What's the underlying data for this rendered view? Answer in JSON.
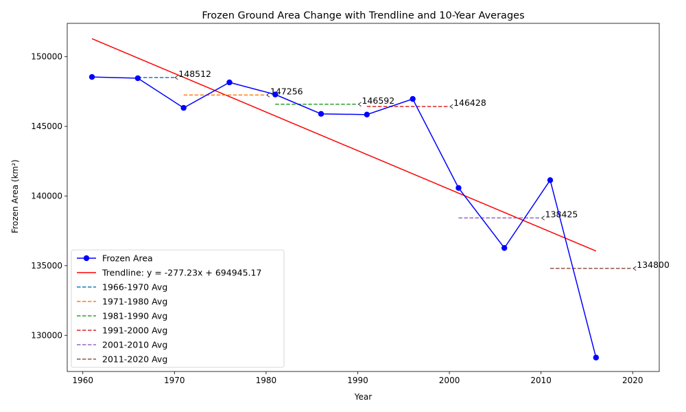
{
  "chart_data": {
    "type": "line",
    "title": "Frozen Ground Area Change with Trendline and 10-Year Averages",
    "xlabel": "Year",
    "ylabel": "Frozen Area (km²)",
    "xlim": [
      1958.3,
      2022.9
    ],
    "ylim": [
      127400,
      152400
    ],
    "xticks": [
      1960,
      1970,
      1980,
      1990,
      2000,
      2010,
      2020
    ],
    "yticks": [
      130000,
      135000,
      140000,
      145000,
      150000
    ],
    "grid": false,
    "legend_position": "lower-left",
    "series": [
      {
        "name": "Frozen Area",
        "color": "#0000ff",
        "marker": "circle",
        "x": [
          1961,
          1966,
          1971,
          1976,
          1981,
          1986,
          1991,
          1996,
          2001,
          2006,
          2011,
          2016
        ],
        "y": [
          148550,
          148460,
          146330,
          148160,
          147290,
          145900,
          145850,
          146970,
          140580,
          136270,
          141140,
          128400
        ]
      }
    ],
    "trendline": {
      "name": "Trendline: y = -277.23x + 694945.17",
      "color": "#ff0000",
      "slope": -277.23,
      "intercept": 694945.17,
      "x_range": [
        1961,
        2016
      ]
    },
    "averages": [
      {
        "name": "1966-1970 Avg",
        "color": "#1f77b4",
        "x": [
          1966,
          1970
        ],
        "value": 148512,
        "label": "148512"
      },
      {
        "name": "1971-1980 Avg",
        "color": "#ff7f0e",
        "x": [
          1971,
          1980
        ],
        "value": 147256,
        "label": "147256"
      },
      {
        "name": "1981-1990 Avg",
        "color": "#2ca02c",
        "x": [
          1981,
          1990
        ],
        "value": 146592,
        "label": "146592"
      },
      {
        "name": "1991-2000 Avg",
        "color": "#d62728",
        "x": [
          1991,
          2000
        ],
        "value": 146428,
        "label": "146428"
      },
      {
        "name": "2001-2010 Avg",
        "color": "#9467bd",
        "x": [
          2001,
          2010
        ],
        "value": 138425,
        "label": "138425"
      },
      {
        "name": "2011-2020 Avg",
        "color": "#8c564b",
        "x": [
          2011,
          2020
        ],
        "value": 134800,
        "label": "134800"
      }
    ]
  }
}
